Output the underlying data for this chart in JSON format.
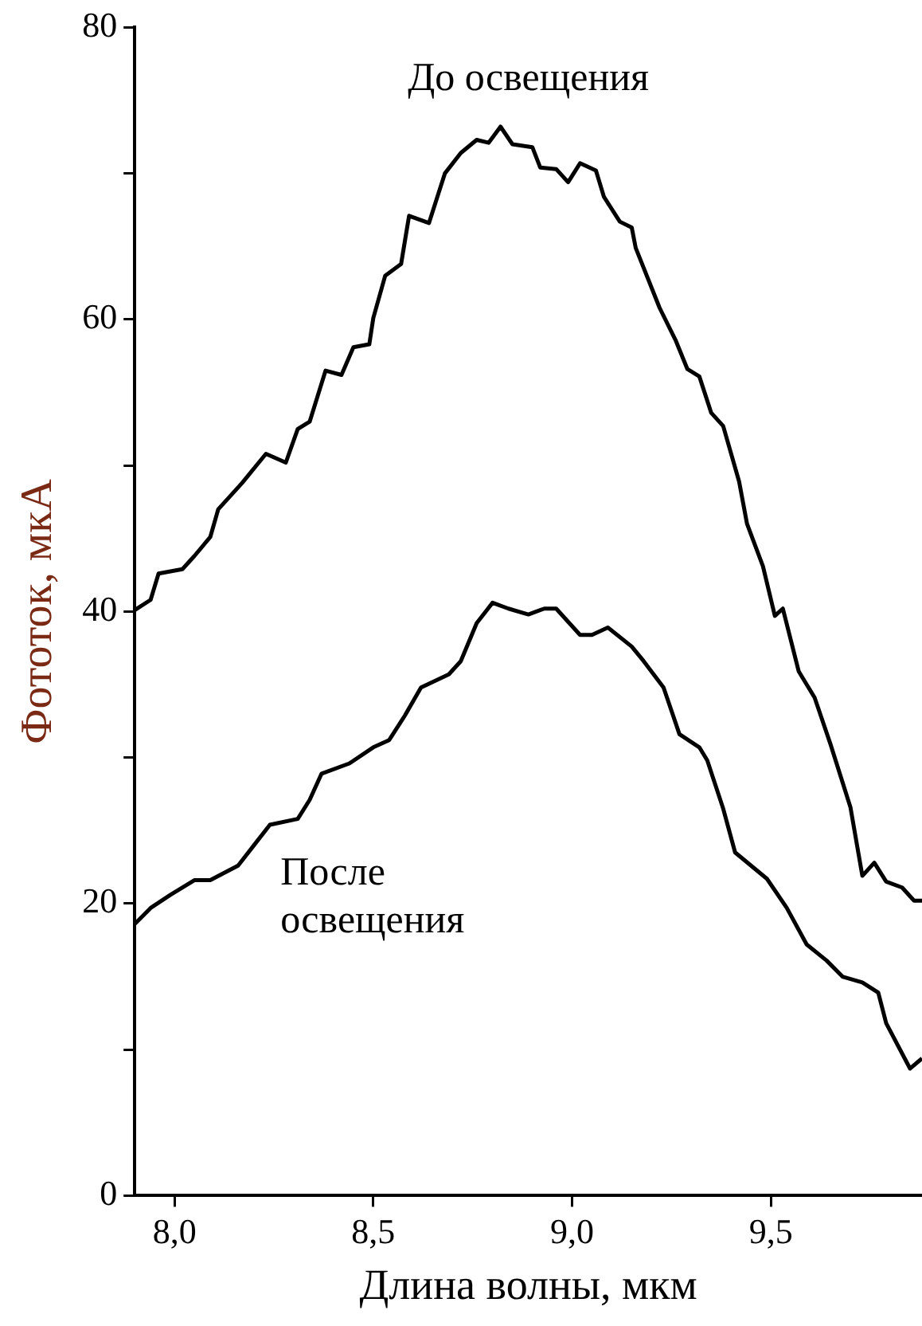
{
  "chart_data": {
    "type": "line",
    "xlabel": "Длина волны, мкм",
    "ylabel": "Фототок, мкА",
    "xlim": [
      7.9,
      9.88
    ],
    "xticks": [
      {
        "value": 8,
        "label": "8,0"
      },
      {
        "value": 8.5,
        "label": "8,5"
      },
      {
        "value": 9,
        "label": "9,0"
      },
      {
        "value": 9.5,
        "label": "9,5"
      }
    ],
    "ylim": [
      0,
      80
    ],
    "yticks": [
      0,
      {
        "value": 10,
        "label": null
      },
      20,
      {
        "value": 30,
        "label": null
      },
      40,
      {
        "value": 50,
        "label": null
      },
      60,
      {
        "value": 70,
        "label": null
      },
      80
    ],
    "grid": false,
    "legend": false,
    "marker": "none",
    "line_style": "solid",
    "series": [
      {
        "color": "#000000",
        "x": [
          7.9,
          7.94,
          7.96,
          8.02,
          8.05,
          8.09,
          8.11,
          8.17,
          8.23,
          8.28,
          8.31,
          8.34,
          8.38,
          8.42,
          8.45,
          8.49,
          8.5,
          8.53,
          8.57,
          8.59,
          8.64,
          8.68,
          8.72,
          8.76,
          8.79,
          8.82,
          8.85,
          8.9,
          8.92,
          8.96,
          8.99,
          9.02,
          9.06,
          9.08,
          9.12,
          9.15,
          9.16,
          9.22,
          9.26,
          9.29,
          9.32,
          9.35,
          9.38,
          9.42,
          9.44,
          9.48,
          9.51,
          9.53,
          9.57,
          9.61,
          9.65,
          9.7,
          9.73,
          9.76,
          9.79,
          9.83,
          9.86,
          9.88
        ],
        "values": [
          40.1,
          40.8,
          42.6,
          42.9,
          43.8,
          45.1,
          47.0,
          48.8,
          50.8,
          50.2,
          52.5,
          53.0,
          56.5,
          56.2,
          58.1,
          58.3,
          60.1,
          63.0,
          63.8,
          67.1,
          66.6,
          70.0,
          71.4,
          72.3,
          72.1,
          73.2,
          72.0,
          71.8,
          70.4,
          70.3,
          69.4,
          70.7,
          70.2,
          68.4,
          66.7,
          66.3,
          64.9,
          60.8,
          58.6,
          56.6,
          56.1,
          53.6,
          52.7,
          48.9,
          46.0,
          43.1,
          39.7,
          40.2,
          35.9,
          34.1,
          30.9,
          26.6,
          21.9,
          22.8,
          21.5,
          21.1,
          20.2,
          20.2
        ]
      },
      {
        "color": "#000000",
        "x": [
          7.9,
          7.94,
          7.99,
          8.05,
          8.09,
          8.16,
          8.2,
          8.24,
          8.31,
          8.34,
          8.37,
          8.44,
          8.5,
          8.54,
          8.58,
          8.62,
          8.69,
          8.72,
          8.76,
          8.8,
          8.84,
          8.89,
          8.93,
          8.96,
          9.02,
          9.05,
          9.09,
          9.15,
          9.18,
          9.23,
          9.27,
          9.32,
          9.34,
          9.38,
          9.41,
          9.49,
          9.54,
          9.59,
          9.64,
          9.68,
          9.73,
          9.77,
          9.79,
          9.85,
          9.88
        ],
        "values": [
          18.6,
          19.7,
          20.6,
          21.6,
          21.6,
          22.6,
          24.0,
          25.4,
          25.8,
          27.1,
          28.9,
          29.6,
          30.7,
          31.2,
          32.9,
          34.8,
          35.7,
          36.6,
          39.2,
          40.6,
          40.2,
          39.8,
          40.2,
          40.2,
          38.4,
          38.4,
          38.9,
          37.6,
          36.6,
          34.8,
          31.6,
          30.7,
          29.8,
          26.5,
          23.5,
          21.7,
          19.7,
          17.2,
          16.1,
          15.0,
          14.6,
          13.9,
          11.8,
          8.7,
          9.4
        ]
      }
    ],
    "annotations": [
      "До освещения",
      "После\nосвещения"
    ]
  }
}
